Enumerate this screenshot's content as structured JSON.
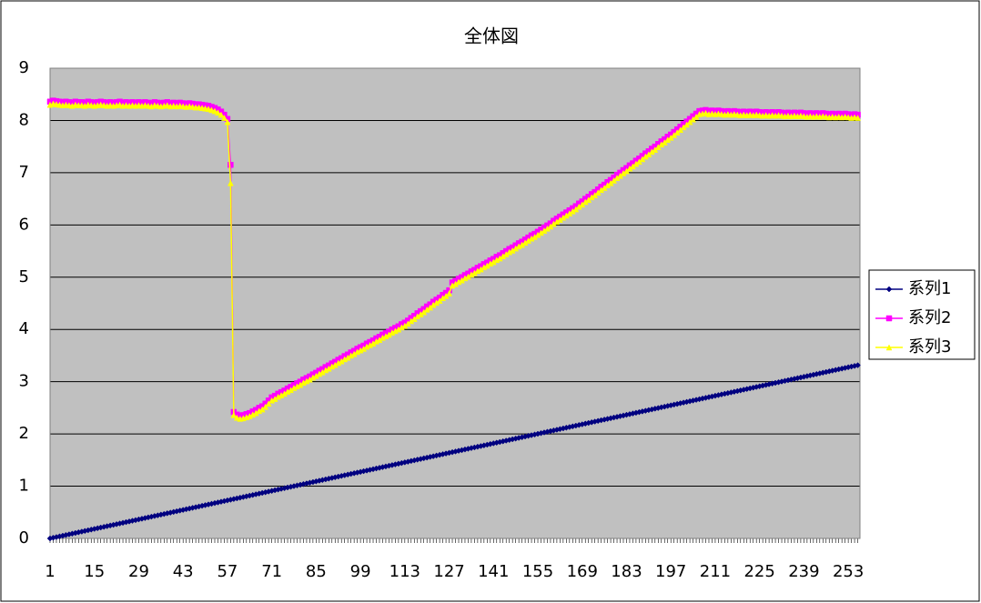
{
  "chart_data": {
    "type": "line",
    "title": "全体図",
    "categories": [
      1,
      null,
      null,
      null,
      null,
      null,
      null,
      null,
      null,
      null,
      null,
      null,
      null,
      null,
      15,
      null,
      null,
      null,
      null,
      null,
      null,
      null,
      null,
      null,
      null,
      null,
      null,
      null,
      29,
      null,
      null,
      null,
      null,
      null,
      null,
      null,
      null,
      null,
      null,
      null,
      null,
      null,
      43,
      null,
      null,
      null,
      null,
      null,
      null,
      null,
      null,
      null,
      null,
      null,
      null,
      null,
      57,
      null,
      null,
      null,
      null,
      null,
      null,
      null,
      null,
      null,
      null,
      null,
      null,
      null,
      71,
      null,
      null,
      null,
      null,
      null,
      null,
      null,
      null,
      null,
      null,
      null,
      null,
      null,
      85,
      null,
      null,
      null,
      null,
      null,
      null,
      null,
      null,
      null,
      null,
      null,
      null,
      null,
      99,
      null,
      null,
      null,
      null,
      null,
      null,
      null,
      null,
      null,
      null,
      null,
      null,
      null,
      113,
      null,
      null,
      null,
      null,
      null,
      null,
      null,
      null,
      null,
      null,
      null,
      null,
      null,
      127,
      null,
      null,
      null,
      null,
      null,
      null,
      null,
      null,
      null,
      null,
      null,
      null,
      null,
      141,
      null,
      null,
      null,
      null,
      null,
      null,
      null,
      null,
      null,
      null,
      null,
      null,
      null,
      155,
      null,
      null,
      null,
      null,
      null,
      null,
      null,
      null,
      null,
      null,
      null,
      null,
      null,
      169,
      null,
      null,
      null,
      null,
      null,
      null,
      null,
      null,
      null,
      null,
      null,
      null,
      null,
      183,
      null,
      null,
      null,
      null,
      null,
      null,
      null,
      null,
      null,
      null,
      null,
      null,
      null,
      197,
      null,
      null,
      null,
      null,
      null,
      null,
      null,
      null,
      null,
      null,
      null,
      null,
      null,
      211,
      null,
      null,
      null,
      null,
      null,
      null,
      null,
      null,
      null,
      null,
      null,
      null,
      null,
      225,
      null,
      null,
      null,
      null,
      null,
      null,
      null,
      null,
      null,
      null,
      null,
      null,
      null,
      239,
      null,
      null,
      null,
      null,
      null,
      null,
      null,
      null,
      null,
      null,
      null,
      null,
      null,
      253,
      null,
      null,
      null
    ],
    "series": [
      {
        "name": "系列1",
        "color": "#000080",
        "marker": "diamond",
        "values": [
          0,
          0.013,
          0.026,
          0.039,
          0.052,
          0.065,
          0.078,
          0.091,
          0.104,
          0.117,
          0.13,
          0.143,
          0.156,
          0.169,
          0.182,
          0.195,
          0.208,
          0.221,
          0.234,
          0.247,
          0.26,
          0.273,
          0.286,
          0.299,
          0.312,
          0.325,
          0.338,
          0.351,
          0.364,
          0.377,
          0.39,
          0.403,
          0.416,
          0.429,
          0.442,
          0.455,
          0.468,
          0.481,
          0.494,
          0.507,
          0.52,
          0.533,
          0.546,
          0.559,
          0.572,
          0.585,
          0.598,
          0.611,
          0.624,
          0.637,
          0.65,
          0.663,
          0.676,
          0.689,
          0.702,
          0.715,
          0.728,
          0.741,
          0.754,
          0.767,
          0.78,
          0.793,
          0.806,
          0.819,
          0.832,
          0.845,
          0.858,
          0.871,
          0.884,
          0.897,
          0.91,
          0.923,
          0.936,
          0.949,
          0.962,
          0.975,
          0.988,
          1.001,
          1.014,
          1.027,
          1.04,
          1.053,
          1.066,
          1.079,
          1.092,
          1.105,
          1.118,
          1.131,
          1.144,
          1.157,
          1.17,
          1.183,
          1.196,
          1.209,
          1.222,
          1.235,
          1.248,
          1.261,
          1.274,
          1.287,
          1.3,
          1.313,
          1.326,
          1.339,
          1.352,
          1.365,
          1.378,
          1.391,
          1.404,
          1.417,
          1.43,
          1.443,
          1.456,
          1.469,
          1.482,
          1.495,
          1.508,
          1.521,
          1.534,
          1.547,
          1.56,
          1.573,
          1.586,
          1.599,
          1.612,
          1.625,
          1.638,
          1.651,
          1.664,
          1.677,
          1.69,
          1.703,
          1.716,
          1.729,
          1.742,
          1.755,
          1.768,
          1.781,
          1.794,
          1.807,
          1.82,
          1.833,
          1.846,
          1.859,
          1.872,
          1.885,
          1.898,
          1.911,
          1.924,
          1.937,
          1.95,
          1.963,
          1.976,
          1.989,
          2.002,
          2.015,
          2.028,
          2.041,
          2.054,
          2.067,
          2.08,
          2.093,
          2.106,
          2.119,
          2.132,
          2.145,
          2.158,
          2.171,
          2.184,
          2.197,
          2.21,
          2.223,
          2.236,
          2.249,
          2.262,
          2.275,
          2.288,
          2.301,
          2.314,
          2.327,
          2.34,
          2.353,
          2.366,
          2.379,
          2.392,
          2.405,
          2.418,
          2.431,
          2.444,
          2.457,
          2.47,
          2.483,
          2.496,
          2.509,
          2.522,
          2.535,
          2.548,
          2.561,
          2.574,
          2.587,
          2.6,
          2.613,
          2.626,
          2.639,
          2.652,
          2.665,
          2.678,
          2.691,
          2.704,
          2.717,
          2.73,
          2.743,
          2.756,
          2.769,
          2.782,
          2.795,
          2.808,
          2.821,
          2.834,
          2.847,
          2.86,
          2.873,
          2.886,
          2.899,
          2.912,
          2.925,
          2.938,
          2.951,
          2.964,
          2.977,
          2.99,
          3.003,
          3.016,
          3.029,
          3.042,
          3.055,
          3.068,
          3.081,
          3.094,
          3.107,
          3.12,
          3.133,
          3.146,
          3.159,
          3.172,
          3.185,
          3.198,
          3.211,
          3.224,
          3.237,
          3.25,
          3.263,
          3.276,
          3.289,
          3.302,
          3.315
        ]
      },
      {
        "name": "系列2",
        "color": "#ff00ff",
        "marker": "square",
        "values": [
          8.36,
          8.38,
          8.37,
          8.36,
          8.35,
          8.36,
          8.35,
          8.34,
          8.36,
          8.35,
          8.35,
          8.34,
          8.36,
          8.35,
          8.34,
          8.35,
          8.36,
          8.35,
          8.34,
          8.35,
          8.34,
          8.35,
          8.36,
          8.34,
          8.35,
          8.34,
          8.35,
          8.34,
          8.35,
          8.34,
          8.35,
          8.34,
          8.33,
          8.35,
          8.34,
          8.33,
          8.34,
          8.35,
          8.33,
          8.34,
          8.33,
          8.34,
          8.33,
          8.32,
          8.33,
          8.32,
          8.31,
          8.31,
          8.3,
          8.29,
          8.28,
          8.26,
          8.24,
          8.21,
          8.17,
          8.11,
          8.03,
          7.15,
          2.42,
          2.37,
          2.35,
          2.36,
          2.38,
          2.4,
          2.43,
          2.46,
          2.5,
          2.53,
          2.58,
          2.64,
          2.7,
          2.73,
          2.77,
          2.8,
          2.83,
          2.87,
          2.9,
          2.94,
          2.97,
          3.0,
          3.04,
          3.07,
          3.1,
          3.14,
          3.17,
          3.21,
          3.24,
          3.28,
          3.31,
          3.35,
          3.38,
          3.42,
          3.45,
          3.49,
          3.52,
          3.56,
          3.59,
          3.63,
          3.66,
          3.69,
          3.73,
          3.76,
          3.79,
          3.83,
          3.86,
          3.9,
          3.93,
          3.96,
          4.0,
          4.03,
          4.06,
          4.1,
          4.13,
          4.17,
          4.22,
          4.26,
          4.31,
          4.35,
          4.39,
          4.44,
          4.48,
          4.53,
          4.57,
          4.61,
          4.66,
          4.7,
          4.75,
          4.9,
          4.93,
          4.97,
          5.0,
          5.04,
          5.07,
          5.11,
          5.14,
          5.18,
          5.21,
          5.25,
          5.28,
          5.32,
          5.35,
          5.39,
          5.42,
          5.46,
          5.5,
          5.54,
          5.57,
          5.61,
          5.65,
          5.68,
          5.72,
          5.76,
          5.8,
          5.83,
          5.87,
          5.91,
          5.95,
          5.99,
          6.03,
          6.08,
          6.12,
          6.16,
          6.2,
          6.24,
          6.28,
          6.32,
          6.36,
          6.41,
          6.45,
          6.5,
          6.54,
          6.59,
          6.63,
          6.68,
          6.73,
          6.77,
          6.82,
          6.86,
          6.91,
          6.96,
          7.0,
          7.05,
          7.09,
          7.14,
          7.18,
          7.23,
          7.27,
          7.32,
          7.37,
          7.41,
          7.46,
          7.5,
          7.55,
          7.6,
          7.64,
          7.69,
          7.73,
          7.78,
          7.83,
          7.88,
          7.93,
          7.98,
          8.03,
          8.08,
          8.13,
          8.18,
          8.19,
          8.2,
          8.18,
          8.19,
          8.18,
          8.19,
          8.18,
          8.17,
          8.18,
          8.17,
          8.18,
          8.17,
          8.16,
          8.17,
          8.16,
          8.17,
          8.16,
          8.17,
          8.16,
          8.15,
          8.16,
          8.15,
          8.16,
          8.15,
          8.16,
          8.15,
          8.14,
          8.15,
          8.14,
          8.15,
          8.14,
          8.15,
          8.14,
          8.13,
          8.14,
          8.13,
          8.14,
          8.13,
          8.14,
          8.13,
          8.12,
          8.13,
          8.12,
          8.13,
          8.12,
          8.13,
          8.12,
          8.11,
          8.12,
          8.11
        ]
      },
      {
        "name": "系列3",
        "color": "#ffff00",
        "marker": "triangle",
        "values": [
          8.3,
          8.32,
          8.31,
          8.3,
          8.29,
          8.3,
          8.29,
          8.28,
          8.3,
          8.29,
          8.29,
          8.28,
          8.3,
          8.29,
          8.28,
          8.29,
          8.3,
          8.29,
          8.28,
          8.29,
          8.28,
          8.29,
          8.3,
          8.28,
          8.29,
          8.28,
          8.29,
          8.28,
          8.29,
          8.28,
          8.29,
          8.28,
          8.27,
          8.29,
          8.28,
          8.27,
          8.28,
          8.29,
          8.27,
          8.28,
          8.27,
          8.28,
          8.27,
          8.26,
          8.27,
          8.26,
          8.25,
          8.25,
          8.24,
          8.23,
          8.22,
          8.2,
          8.18,
          8.15,
          8.11,
          8.05,
          7.97,
          6.8,
          2.36,
          2.31,
          2.29,
          2.3,
          2.32,
          2.34,
          2.37,
          2.4,
          2.44,
          2.47,
          2.52,
          2.58,
          2.64,
          2.67,
          2.71,
          2.74,
          2.77,
          2.81,
          2.84,
          2.88,
          2.91,
          2.94,
          2.98,
          3.01,
          3.04,
          3.08,
          3.11,
          3.15,
          3.18,
          3.22,
          3.25,
          3.29,
          3.32,
          3.36,
          3.39,
          3.43,
          3.46,
          3.5,
          3.53,
          3.57,
          3.6,
          3.63,
          3.67,
          3.7,
          3.73,
          3.77,
          3.8,
          3.84,
          3.87,
          3.9,
          3.94,
          3.97,
          4.0,
          4.04,
          4.07,
          4.11,
          4.16,
          4.2,
          4.25,
          4.29,
          4.33,
          4.38,
          4.42,
          4.47,
          4.51,
          4.55,
          4.6,
          4.64,
          4.69,
          4.84,
          4.87,
          4.91,
          4.94,
          4.98,
          5.01,
          5.05,
          5.08,
          5.12,
          5.15,
          5.19,
          5.22,
          5.26,
          5.29,
          5.33,
          5.36,
          5.4,
          5.44,
          5.48,
          5.51,
          5.55,
          5.59,
          5.62,
          5.66,
          5.7,
          5.74,
          5.77,
          5.81,
          5.85,
          5.89,
          5.93,
          5.97,
          6.02,
          6.06,
          6.1,
          6.14,
          6.18,
          6.22,
          6.26,
          6.3,
          6.35,
          6.39,
          6.44,
          6.48,
          6.53,
          6.57,
          6.62,
          6.67,
          6.71,
          6.76,
          6.8,
          6.85,
          6.9,
          6.94,
          6.99,
          7.03,
          7.08,
          7.12,
          7.17,
          7.21,
          7.26,
          7.31,
          7.35,
          7.4,
          7.44,
          7.49,
          7.54,
          7.58,
          7.63,
          7.67,
          7.72,
          7.77,
          7.82,
          7.87,
          7.92,
          7.97,
          8.02,
          8.07,
          8.12,
          8.13,
          8.14,
          8.12,
          8.13,
          8.12,
          8.13,
          8.12,
          8.11,
          8.12,
          8.11,
          8.12,
          8.11,
          8.1,
          8.11,
          8.1,
          8.11,
          8.1,
          8.11,
          8.1,
          8.09,
          8.1,
          8.09,
          8.1,
          8.09,
          8.1,
          8.09,
          8.08,
          8.09,
          8.08,
          8.09,
          8.08,
          8.09,
          8.08,
          8.07,
          8.08,
          8.07,
          8.08,
          8.07,
          8.08,
          8.07,
          8.06,
          8.07,
          8.06,
          8.07,
          8.06,
          8.07,
          8.06,
          8.05,
          8.06,
          8.05
        ]
      }
    ],
    "ylim": [
      0,
      9
    ],
    "yticks": [
      0,
      1,
      2,
      3,
      4,
      5,
      6,
      7,
      8,
      9
    ],
    "grid": true,
    "legend": "right"
  }
}
